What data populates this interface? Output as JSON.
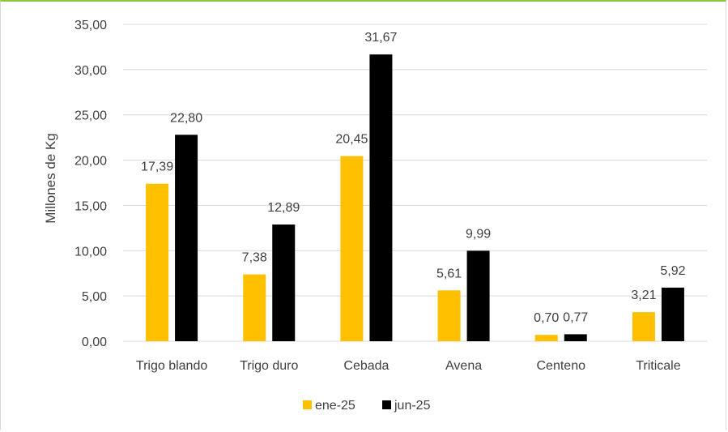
{
  "chart_data": {
    "type": "bar",
    "title": "",
    "xlabel": "",
    "ylabel": "Millones de Kg",
    "ylim": [
      0,
      35
    ],
    "yticks": [
      "0,00",
      "5,00",
      "10,00",
      "15,00",
      "20,00",
      "25,00",
      "30,00",
      "35,00"
    ],
    "ytick_values": [
      0,
      5,
      10,
      15,
      20,
      25,
      30,
      35
    ],
    "categories": [
      "Trigo blando",
      "Trigo duro",
      "Cebada",
      "Avena",
      "Centeno",
      "Triticale"
    ],
    "series": [
      {
        "name": "ene-25",
        "color": "#ffc000",
        "values": [
          17.39,
          7.38,
          20.45,
          5.61,
          0.7,
          3.21
        ],
        "labels": [
          "17,39",
          "7,38",
          "20,45",
          "5,61",
          "0,70",
          "3,21"
        ]
      },
      {
        "name": "jun-25",
        "color": "#000000",
        "values": [
          22.8,
          12.89,
          31.67,
          9.99,
          0.77,
          5.92
        ],
        "labels": [
          "22,80",
          "12,89",
          "31,67",
          "9,99",
          "0,77",
          "5,92"
        ]
      }
    ],
    "grid": true,
    "legend_position": "bottom"
  }
}
